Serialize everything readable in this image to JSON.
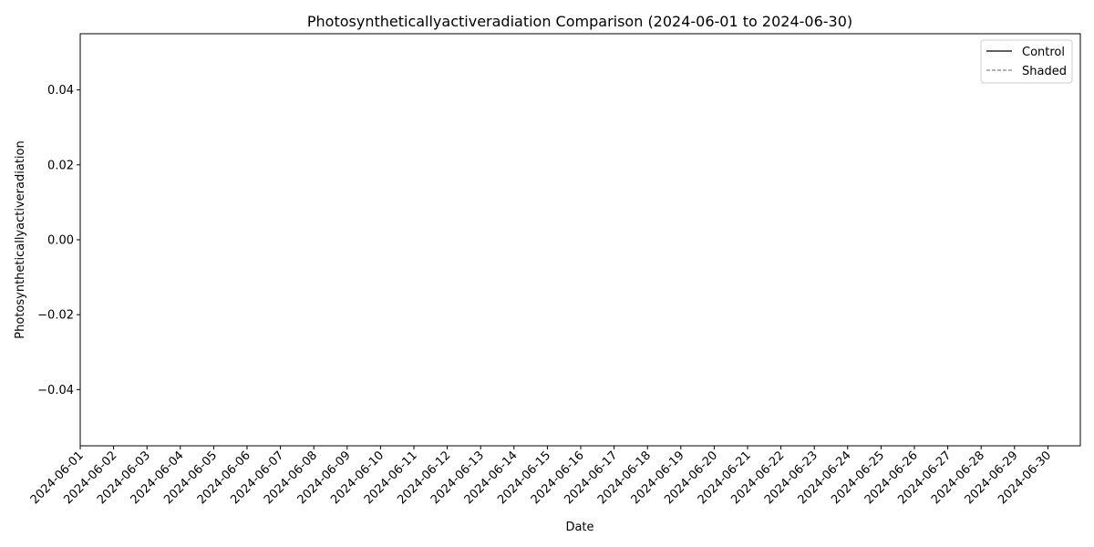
{
  "chart_data": {
    "type": "line",
    "title": "Photosyntheticallyactiveradiation Comparison (2024-06-01 to 2024-06-30)",
    "xlabel": "Date",
    "ylabel": "Photosyntheticallyactiveradiation",
    "x_categories": [
      "2024-06-01",
      "2024-06-02",
      "2024-06-03",
      "2024-06-04",
      "2024-06-05",
      "2024-06-06",
      "2024-06-07",
      "2024-06-08",
      "2024-06-09",
      "2024-06-10",
      "2024-06-11",
      "2024-06-12",
      "2024-06-13",
      "2024-06-14",
      "2024-06-15",
      "2024-06-16",
      "2024-06-17",
      "2024-06-18",
      "2024-06-19",
      "2024-06-20",
      "2024-06-21",
      "2024-06-22",
      "2024-06-23",
      "2024-06-24",
      "2024-06-25",
      "2024-06-26",
      "2024-06-27",
      "2024-06-28",
      "2024-06-29",
      "2024-06-30"
    ],
    "x_ticks": [
      "2024-06-01",
      "2024-06-02",
      "2024-06-03",
      "2024-06-04",
      "2024-06-05",
      "2024-06-06",
      "2024-06-07",
      "2024-06-08",
      "2024-06-09",
      "2024-06-10",
      "2024-06-11",
      "2024-06-12",
      "2024-06-13",
      "2024-06-14",
      "2024-06-15",
      "2024-06-16",
      "2024-06-17",
      "2024-06-18",
      "2024-06-19",
      "2024-06-20",
      "2024-06-21",
      "2024-06-22",
      "2024-06-23",
      "2024-06-24",
      "2024-06-25",
      "2024-06-26",
      "2024-06-27",
      "2024-06-28",
      "2024-06-29",
      "2024-06-30"
    ],
    "y_ticks": [
      "0.04",
      "0.02",
      "0.00",
      "−0.02",
      "−0.04"
    ],
    "y_tick_values": [
      0.04,
      0.02,
      0.0,
      -0.02,
      -0.04
    ],
    "ylim": [
      -0.055,
      0.055
    ],
    "grid": false,
    "legend_position": "top-right",
    "series": [
      {
        "name": "Control",
        "color": "#000000",
        "dash": "solid",
        "values": []
      },
      {
        "name": "Shaded",
        "color": "#808080",
        "dash": "dashed",
        "values": []
      }
    ]
  }
}
